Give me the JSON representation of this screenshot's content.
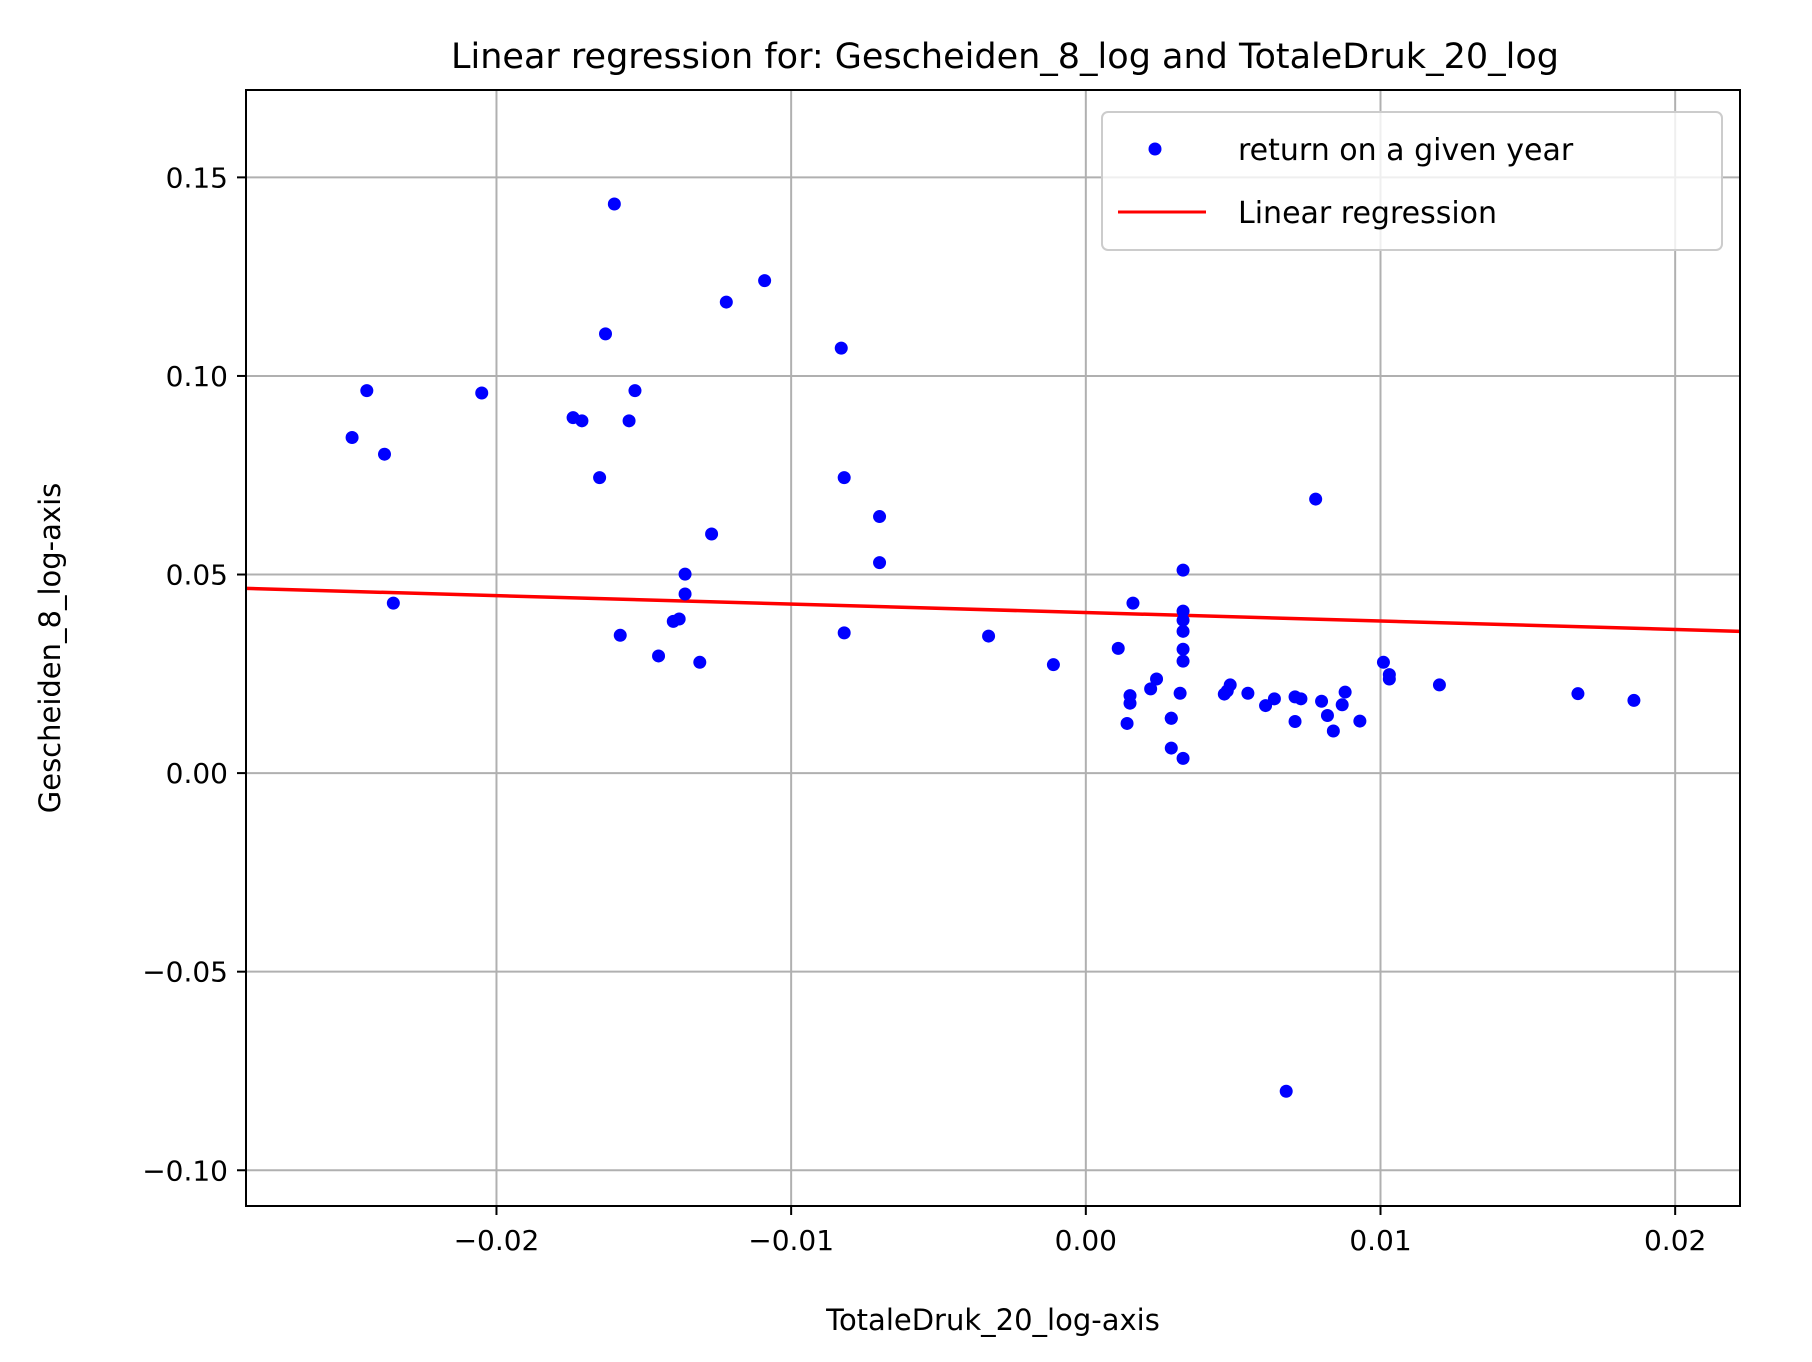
{
  "chart_data": {
    "type": "scatter",
    "title": "Linear regression for: Gescheiden_8_log and TotaleDruk_20_log",
    "xlabel": "TotaleDruk_20_log-axis",
    "ylabel": "Gescheiden_8_log-axis",
    "xlim": [
      -0.0285,
      0.0222
    ],
    "ylim": [
      -0.109,
      0.172
    ],
    "x_ticks": [
      -0.02,
      -0.01,
      0.0,
      0.01,
      0.02
    ],
    "x_tick_labels": [
      "−0.02",
      "−0.01",
      "0.00",
      "0.01",
      "0.02"
    ],
    "y_ticks": [
      0.15,
      0.1,
      0.05,
      0.0,
      -0.05,
      -0.1
    ],
    "y_tick_labels": [
      "0.15",
      "0.10",
      "0.05",
      "0.00",
      "−0.05",
      "−0.10"
    ],
    "grid": true,
    "legend_position": "top-right",
    "series": [
      {
        "name": "return on a given year",
        "kind": "scatter",
        "color": "#0000ff",
        "points": [
          [
            -0.0249,
            0.0845
          ],
          [
            -0.0244,
            0.0963
          ],
          [
            -0.0238,
            0.0803
          ],
          [
            -0.0235,
            0.0428
          ],
          [
            -0.0205,
            0.0957
          ],
          [
            -0.0174,
            0.0895
          ],
          [
            -0.0171,
            0.0887
          ],
          [
            -0.0165,
            0.0744
          ],
          [
            -0.0163,
            0.1106
          ],
          [
            -0.016,
            0.1433
          ],
          [
            -0.0158,
            0.0347
          ],
          [
            -0.0155,
            0.0887
          ],
          [
            -0.0153,
            0.0963
          ],
          [
            -0.0145,
            0.0295
          ],
          [
            -0.014,
            0.0382
          ],
          [
            -0.0138,
            0.0388
          ],
          [
            -0.0136,
            0.0501
          ],
          [
            -0.0136,
            0.0451
          ],
          [
            -0.0131,
            0.0279
          ],
          [
            -0.0127,
            0.0602
          ],
          [
            -0.0122,
            0.1186
          ],
          [
            -0.0109,
            0.124
          ],
          [
            -0.0083,
            0.107
          ],
          [
            -0.0082,
            0.0744
          ],
          [
            -0.0082,
            0.0353
          ],
          [
            -0.007,
            0.0646
          ],
          [
            -0.007,
            0.053
          ],
          [
            -0.0033,
            0.0345
          ],
          [
            -0.0011,
            0.0273
          ],
          [
            0.0011,
            0.0314
          ],
          [
            0.0014,
            0.0125
          ],
          [
            0.0015,
            0.0195
          ],
          [
            0.0015,
            0.0176
          ],
          [
            0.0016,
            0.0428
          ],
          [
            0.0022,
            0.0212
          ],
          [
            0.0024,
            0.0237
          ],
          [
            0.0029,
            0.0138
          ],
          [
            0.0029,
            0.0138
          ],
          [
            0.0029,
            0.0063
          ],
          [
            0.0032,
            0.0201
          ],
          [
            0.0033,
            0.0511
          ],
          [
            0.0033,
            0.0408
          ],
          [
            0.0033,
            0.0385
          ],
          [
            0.0033,
            0.0357
          ],
          [
            0.0033,
            0.0312
          ],
          [
            0.0033,
            0.0282
          ],
          [
            0.0033,
            0.0037
          ],
          [
            0.0047,
            0.0199
          ],
          [
            0.0048,
            0.0207
          ],
          [
            0.0049,
            0.0222
          ],
          [
            0.0055,
            0.0201
          ],
          [
            0.0061,
            0.017
          ],
          [
            0.0064,
            0.0187
          ],
          [
            0.0068,
            -0.0801
          ],
          [
            0.0071,
            0.0192
          ],
          [
            0.0071,
            0.013
          ],
          [
            0.0073,
            0.0187
          ],
          [
            0.0078,
            0.069
          ],
          [
            0.008,
            0.0181
          ],
          [
            0.0082,
            0.0145
          ],
          [
            0.0084,
            0.0106
          ],
          [
            0.0087,
            0.0172
          ],
          [
            0.0088,
            0.0204
          ],
          [
            0.0093,
            0.0131
          ],
          [
            0.0101,
            0.0279
          ],
          [
            0.0103,
            0.0237
          ],
          [
            0.0103,
            0.0248
          ],
          [
            0.012,
            0.0222
          ],
          [
            0.0167,
            0.02
          ],
          [
            0.0186,
            0.0183
          ]
        ]
      },
      {
        "name": "Linear regression",
        "kind": "line",
        "color": "#ff0000",
        "points": [
          [
            -0.0285,
            0.0465
          ],
          [
            0.0222,
            0.0357
          ]
        ]
      }
    ]
  }
}
